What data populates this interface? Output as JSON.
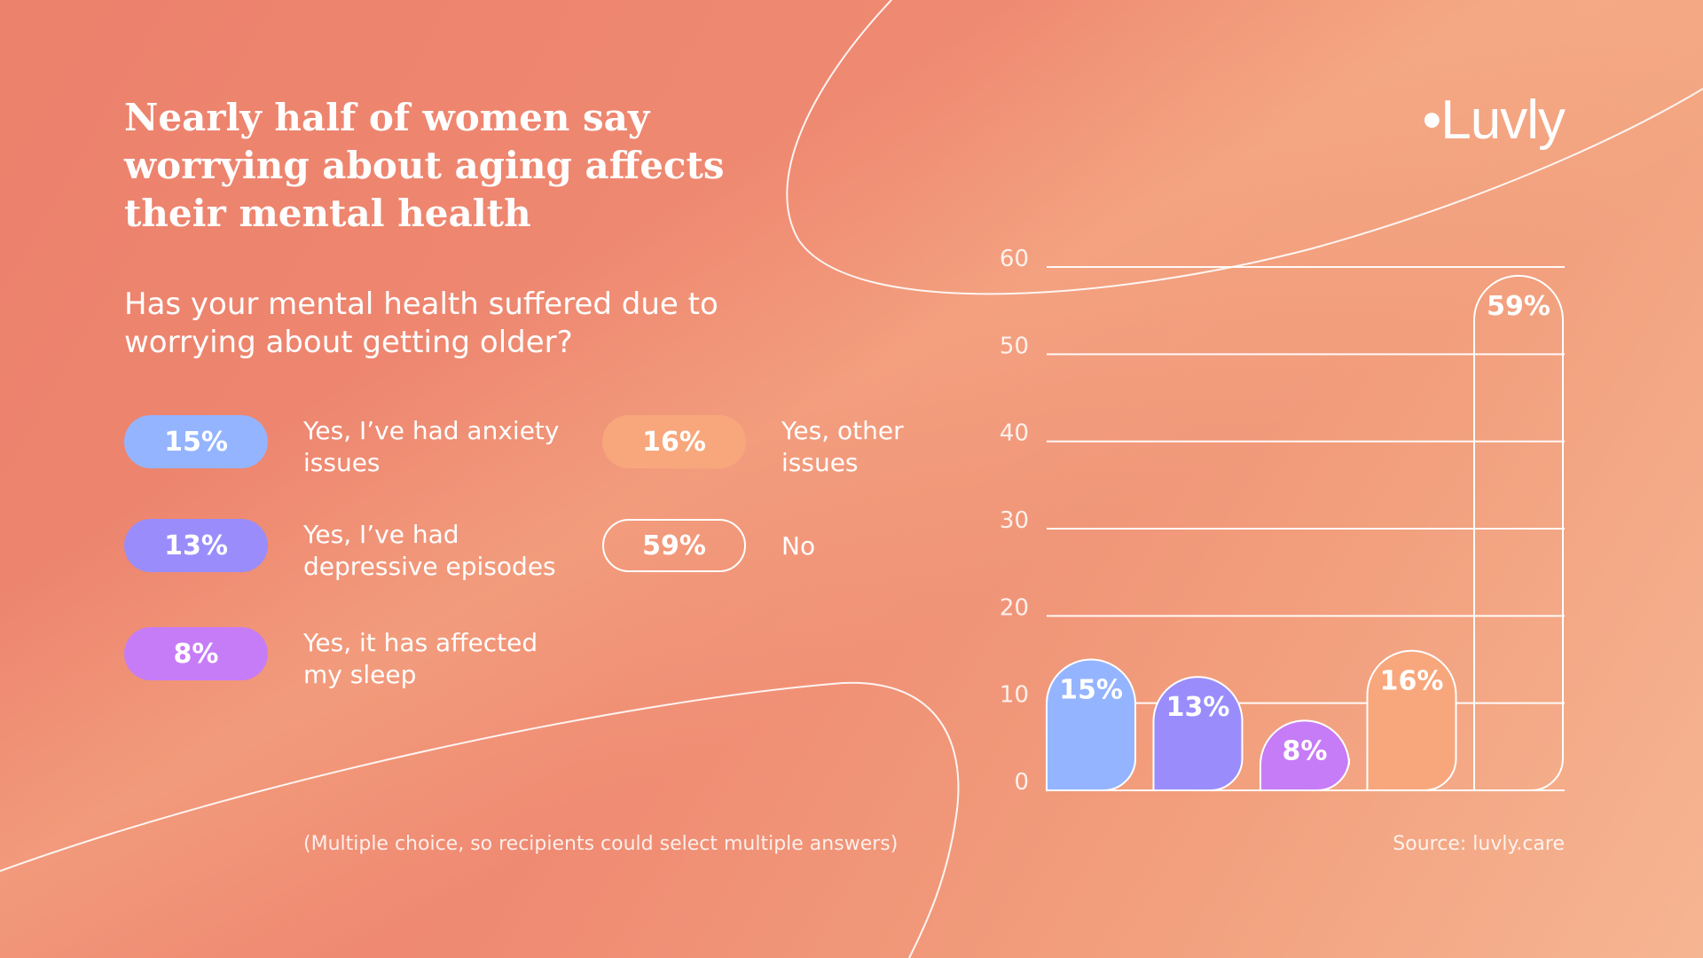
{
  "title": "Nearly half of women say worrying about aging affects their mental health",
  "question": "Has your mental health suffered due to worrying about getting older?",
  "logo": "•Luvly",
  "legend": [
    {
      "value": "15%",
      "label": "Yes, I’ve had anxiety issues",
      "color": "#94b4ff"
    },
    {
      "value": "13%",
      "label": "Yes, I’ve had depressive episodes",
      "color": "#9a8dfb"
    },
    {
      "value": "8%",
      "label": "Yes, it has affected my sleep",
      "color": "#c77cf7"
    },
    {
      "value": "16%",
      "label": "Yes, other issues",
      "color": "#f8a77c"
    },
    {
      "value": "59%",
      "label": "No",
      "color": "outline"
    }
  ],
  "note": "(Multiple choice, so recipients could select multiple answers)",
  "source": "Source: luvly.care",
  "chart_data": {
    "type": "bar",
    "categories": [
      "Yes, I’ve had anxiety issues",
      "Yes, I’ve had depressive episodes",
      "Yes, it has affected my sleep",
      "Yes, other issues",
      "No"
    ],
    "values": [
      15,
      13,
      8,
      16,
      59
    ],
    "labels": [
      "15%",
      "13%",
      "8%",
      "16%",
      "59%"
    ],
    "colors": [
      "#94b4ff",
      "#9a8dfb",
      "#c77cf7",
      "#f8a77c",
      "outline"
    ],
    "yticks": [
      0,
      10,
      20,
      30,
      40,
      50,
      60
    ],
    "ylim": [
      0,
      60
    ],
    "grid": true
  }
}
